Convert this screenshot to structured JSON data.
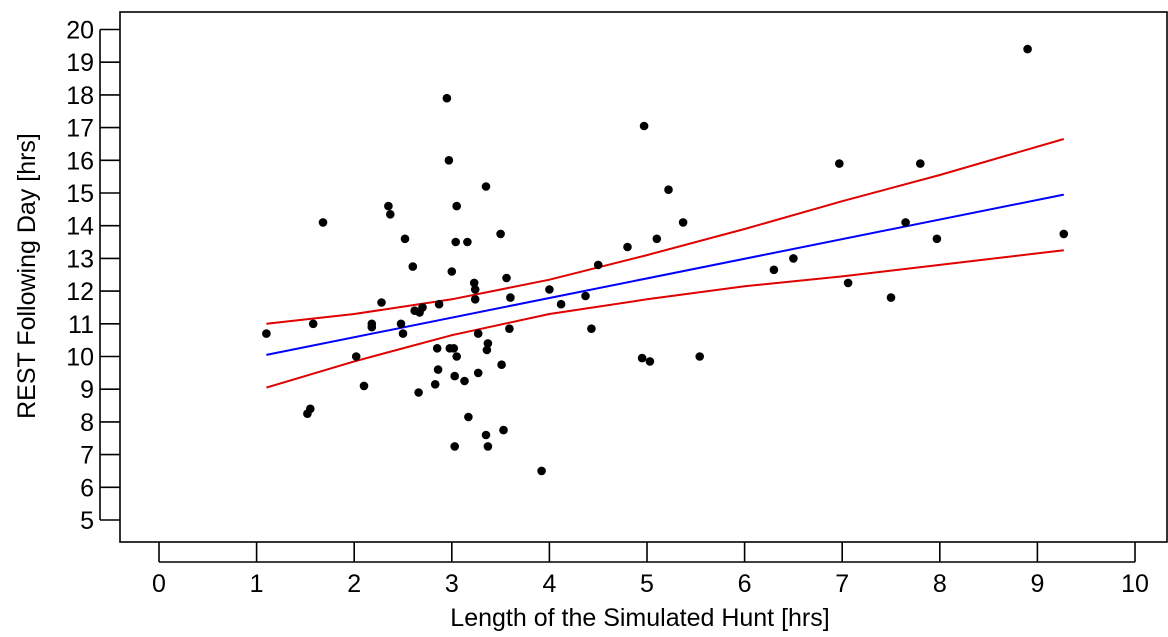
{
  "chart_data": {
    "type": "scatter",
    "title": "",
    "xlabel": "Length of the Simulated Hunt [hrs]",
    "ylabel": "REST Following Day [hrs]",
    "xlim": [
      0,
      10
    ],
    "ylim": [
      5,
      20
    ],
    "x_ticks": [
      0,
      1,
      2,
      3,
      4,
      5,
      6,
      7,
      8,
      9,
      10
    ],
    "y_ticks": [
      5,
      6,
      7,
      8,
      9,
      10,
      11,
      12,
      13,
      14,
      15,
      16,
      17,
      18,
      19,
      20
    ],
    "grid": false,
    "legend": "none",
    "colors": {
      "points": "#000000",
      "fit": "#0000ff",
      "band": "#e00000"
    },
    "points": [
      [
        1.1,
        10.7
      ],
      [
        1.52,
        8.25
      ],
      [
        1.55,
        8.4
      ],
      [
        1.58,
        11.0
      ],
      [
        1.68,
        14.1
      ],
      [
        2.02,
        10.0
      ],
      [
        2.1,
        9.1
      ],
      [
        2.18,
        11.0
      ],
      [
        2.18,
        10.9
      ],
      [
        2.28,
        11.65
      ],
      [
        2.35,
        14.6
      ],
      [
        2.37,
        14.35
      ],
      [
        2.48,
        11.0
      ],
      [
        2.5,
        10.7
      ],
      [
        2.52,
        13.6
      ],
      [
        2.6,
        12.75
      ],
      [
        2.62,
        11.4
      ],
      [
        2.66,
        8.9
      ],
      [
        2.67,
        11.35
      ],
      [
        2.7,
        11.5
      ],
      [
        2.83,
        9.15
      ],
      [
        2.85,
        10.25
      ],
      [
        2.86,
        9.6
      ],
      [
        2.87,
        11.6
      ],
      [
        2.95,
        17.9
      ],
      [
        2.97,
        16.0
      ],
      [
        2.98,
        10.25
      ],
      [
        3.0,
        12.6
      ],
      [
        3.02,
        10.25
      ],
      [
        3.03,
        7.25
      ],
      [
        3.03,
        9.4
      ],
      [
        3.04,
        13.5
      ],
      [
        3.05,
        14.6
      ],
      [
        3.05,
        10.0
      ],
      [
        3.13,
        9.25
      ],
      [
        3.16,
        13.5
      ],
      [
        3.17,
        8.15
      ],
      [
        3.23,
        12.25
      ],
      [
        3.24,
        11.75
      ],
      [
        3.24,
        12.05
      ],
      [
        3.27,
        9.5
      ],
      [
        3.27,
        10.7
      ],
      [
        3.35,
        15.2
      ],
      [
        3.35,
        7.6
      ],
      [
        3.36,
        10.2
      ],
      [
        3.37,
        7.25
      ],
      [
        3.37,
        10.4
      ],
      [
        3.5,
        13.75
      ],
      [
        3.51,
        9.75
      ],
      [
        3.53,
        7.75
      ],
      [
        3.56,
        12.4
      ],
      [
        3.59,
        10.85
      ],
      [
        3.6,
        11.8
      ],
      [
        3.92,
        6.5
      ],
      [
        4.0,
        12.05
      ],
      [
        4.12,
        11.6
      ],
      [
        4.37,
        11.85
      ],
      [
        4.43,
        10.85
      ],
      [
        4.5,
        12.8
      ],
      [
        4.8,
        13.35
      ],
      [
        4.95,
        9.95
      ],
      [
        4.97,
        17.05
      ],
      [
        5.03,
        9.85
      ],
      [
        5.1,
        13.6
      ],
      [
        5.22,
        15.1
      ],
      [
        5.37,
        14.1
      ],
      [
        5.54,
        10.0
      ],
      [
        6.3,
        12.65
      ],
      [
        6.5,
        13.0
      ],
      [
        6.97,
        15.9
      ],
      [
        7.06,
        12.25
      ],
      [
        7.5,
        11.8
      ],
      [
        7.65,
        14.1
      ],
      [
        7.8,
        15.9
      ],
      [
        7.97,
        13.6
      ],
      [
        8.9,
        19.4
      ],
      [
        9.27,
        13.75
      ]
    ],
    "fit_line": {
      "x": [
        1.1,
        9.27
      ],
      "y": [
        10.05,
        14.95
      ]
    },
    "confidence_upper": {
      "x": [
        1.1,
        2.0,
        3.0,
        4.0,
        5.0,
        6.0,
        7.0,
        8.0,
        9.27
      ],
      "y": [
        11.0,
        11.3,
        11.75,
        12.35,
        13.1,
        13.9,
        14.75,
        15.55,
        16.65
      ]
    },
    "confidence_lower": {
      "x": [
        1.1,
        2.0,
        3.0,
        4.0,
        5.0,
        6.0,
        7.0,
        8.0,
        9.27
      ],
      "y": [
        9.05,
        9.85,
        10.65,
        11.3,
        11.75,
        12.15,
        12.45,
        12.8,
        13.25
      ]
    }
  }
}
